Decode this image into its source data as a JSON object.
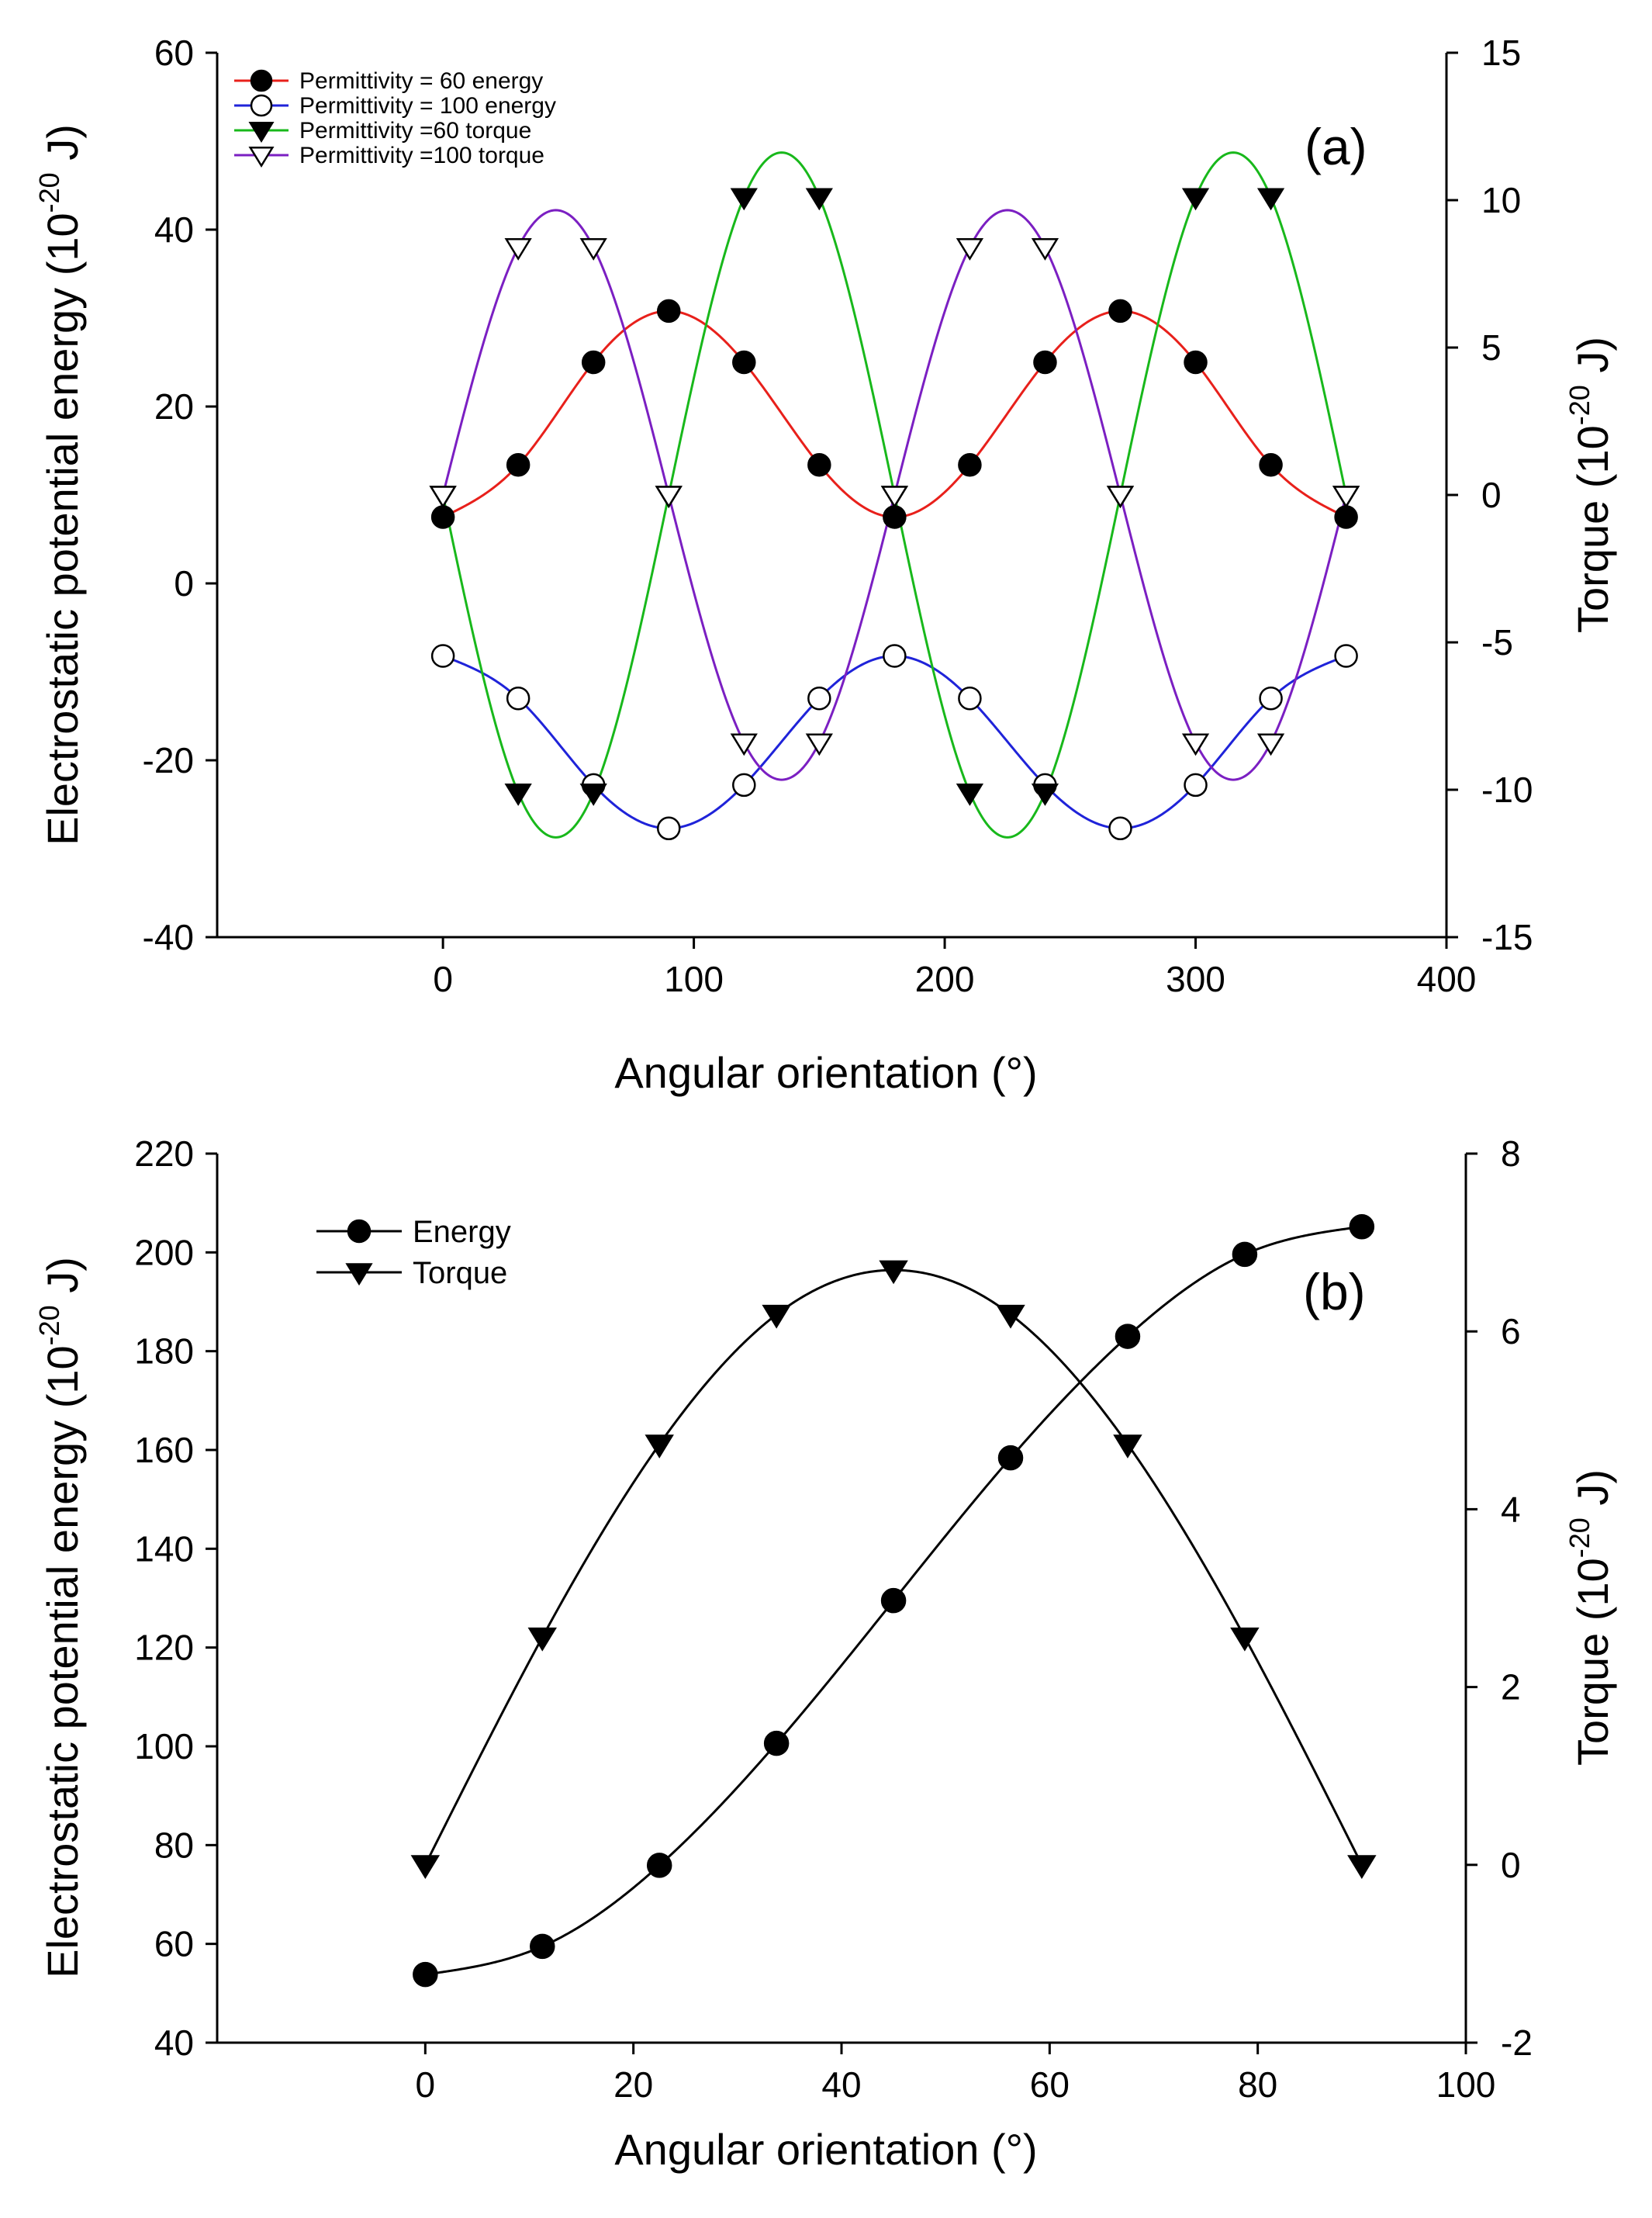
{
  "chart_data": [
    {
      "type": "line",
      "panel_label": "(a)",
      "xlabel": "Angular orientation (°)",
      "ylabel": "Electrostatic potential energy (10^-20 J)",
      "ylabel_parts": {
        "pre": "Electrostatic potential energy (10",
        "sup": "-20",
        "post": " J)"
      },
      "y2label": "Torque (10^-20 J)",
      "y2label_parts": {
        "pre": "Torque (10",
        "sup": "-20",
        "post": " J)"
      },
      "xlim": [
        -90,
        400
      ],
      "ylim": [
        -40,
        60
      ],
      "y2lim": [
        -15,
        15
      ],
      "x_ticks": [
        0,
        100,
        200,
        300,
        400
      ],
      "y_ticks": [
        -40,
        -20,
        0,
        20,
        40,
        60
      ],
      "y2_ticks": [
        -15,
        -10,
        -5,
        0,
        5,
        10,
        15
      ],
      "grid": false,
      "legend_position": "top-left",
      "x": [
        0,
        30,
        60,
        90,
        120,
        150,
        180,
        210,
        240,
        270,
        300,
        330,
        360
      ],
      "series": [
        {
          "name": "Permittivity = 60 energy",
          "axis": "left",
          "marker": "circle-filled",
          "color": "#e8201b",
          "values": [
            7.5,
            13.4,
            25.0,
            30.8,
            25.0,
            13.4,
            7.5,
            13.4,
            25.0,
            30.8,
            25.0,
            13.4,
            7.5
          ]
        },
        {
          "name": "Permittivity = 100 energy",
          "axis": "left",
          "marker": "circle-open",
          "color": "#1f23d9",
          "values": [
            -8.2,
            -13.0,
            -22.8,
            -27.7,
            -22.8,
            -13.0,
            -8.2,
            -13.0,
            -22.8,
            -27.7,
            -22.8,
            -13.0,
            -8.2
          ]
        },
        {
          "name": "Permittivity =60 torque",
          "axis": "right",
          "marker": "triangle-filled",
          "color": "#18b81b",
          "values": [
            0,
            -10.1,
            -10.1,
            0,
            10.1,
            10.1,
            0,
            -10.1,
            -10.1,
            0,
            10.1,
            10.1,
            0
          ]
        },
        {
          "name": "Permittivity =100 torque",
          "axis": "right",
          "marker": "triangle-open",
          "color": "#7b1fc2",
          "values": [
            0,
            8.4,
            8.4,
            0,
            -8.4,
            -8.4,
            0,
            8.4,
            8.4,
            0,
            -8.4,
            -8.4,
            0
          ]
        }
      ]
    },
    {
      "type": "line",
      "panel_label": "(b)",
      "xlabel": "Angular orientation (°)",
      "ylabel": "Electrostatic potential energy (10^-20 J)",
      "ylabel_parts": {
        "pre": "Electrostatic potential energy (10",
        "sup": "-20",
        "post": " J)"
      },
      "y2label": "Torque (10^-20 J)",
      "y2label_parts": {
        "pre": "Torque (10",
        "sup": "-20",
        "post": " J)"
      },
      "xlim": [
        -20,
        100
      ],
      "ylim": [
        40,
        220
      ],
      "y2lim": [
        -2,
        8
      ],
      "x_ticks": [
        0,
        20,
        40,
        60,
        80,
        100
      ],
      "y_ticks": [
        40,
        60,
        80,
        100,
        120,
        140,
        160,
        180,
        200,
        220
      ],
      "y2_ticks": [
        -2,
        0,
        2,
        4,
        6,
        8
      ],
      "grid": false,
      "legend_position": "top-left",
      "x": [
        0,
        11.25,
        22.5,
        33.75,
        45,
        56.25,
        67.5,
        78.75,
        90
      ],
      "series": [
        {
          "name": "Energy",
          "axis": "left",
          "marker": "circle-filled",
          "color": "#000000",
          "values": [
            53.8,
            59.5,
            75.9,
            100.6,
            129.5,
            158.4,
            183.0,
            199.6,
            205.2
          ]
        },
        {
          "name": "Torque",
          "axis": "right",
          "marker": "triangle-filled",
          "color": "#000000",
          "values": [
            0,
            2.56,
            4.73,
            6.19,
            6.69,
            6.19,
            4.73,
            2.56,
            0
          ]
        }
      ]
    }
  ]
}
